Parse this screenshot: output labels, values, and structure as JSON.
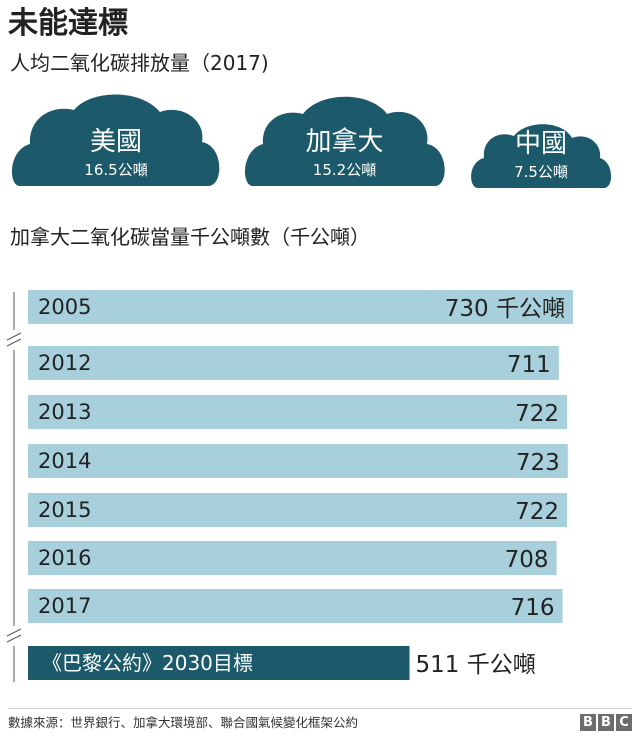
{
  "header": {
    "title": "未能達標",
    "subtitle": "人均二氧化碳排放量（2017)"
  },
  "clouds": [
    {
      "country": "美國",
      "value_label": "16.5公噸",
      "value": 16.5
    },
    {
      "country": "加拿大",
      "value_label": "15.2公噸",
      "value": 15.2
    },
    {
      "country": "中國",
      "value_label": "7.5公噸",
      "value": 7.5
    }
  ],
  "colors": {
    "cloud": "#1c5a6b",
    "bar": "#a8d0dc",
    "target_bar": "#1c5a6b",
    "text": "#222222"
  },
  "chart_data": {
    "type": "bar",
    "orientation": "horizontal",
    "title": "加拿大二氧化碳當量千公噸數（千公噸）",
    "categories": [
      "2005",
      "2012",
      "2013",
      "2014",
      "2015",
      "2016",
      "2017",
      "《巴黎公約》2030目標"
    ],
    "values": [
      730,
      711,
      722,
      723,
      722,
      708,
      716,
      511
    ],
    "value_labels": [
      "730 千公噸",
      "711",
      "722",
      "723",
      "722",
      "708",
      "716",
      "511 千公噸"
    ],
    "axis_breaks_after": [
      "2005",
      "2017"
    ],
    "grid": false,
    "xlim": [
      0,
      730
    ]
  },
  "footer": {
    "source": "數據來源：世界銀行、加拿大環境部、聯合國氣候變化框架公約",
    "logo": [
      "B",
      "B",
      "C"
    ]
  }
}
